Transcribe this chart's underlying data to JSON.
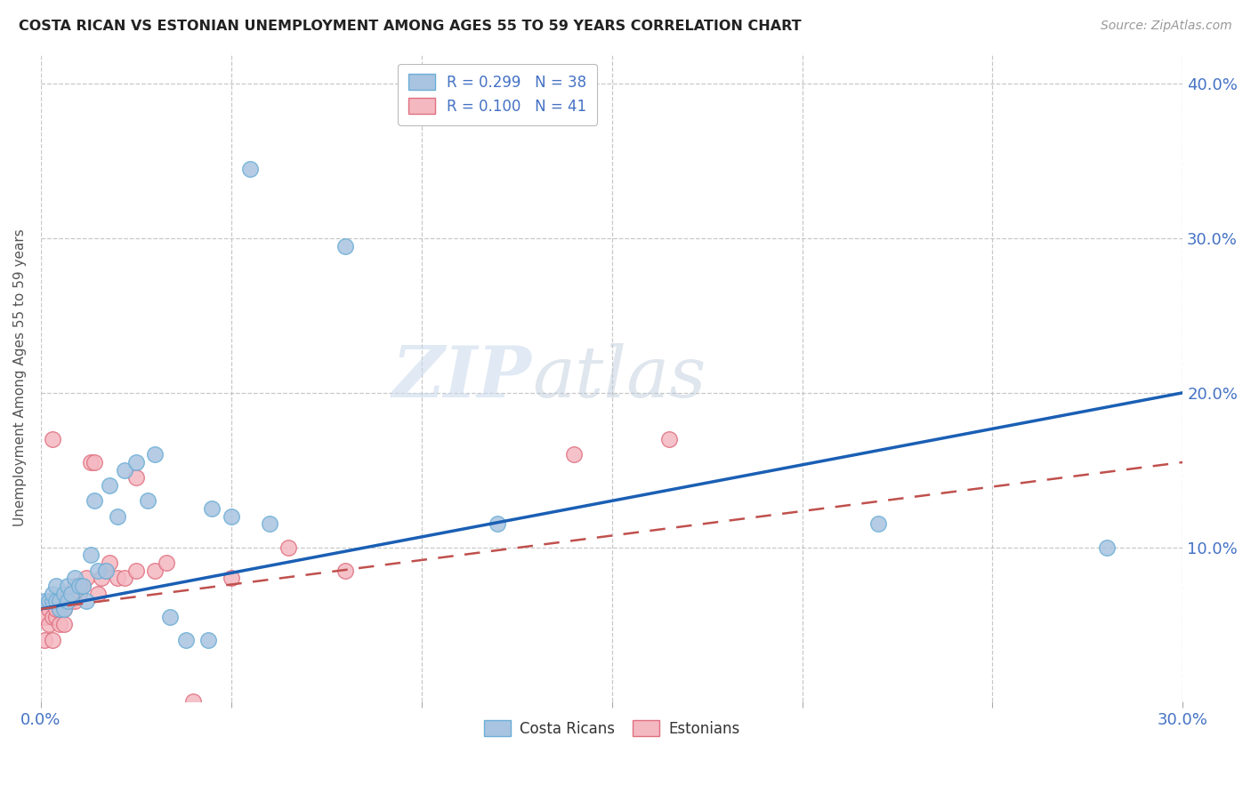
{
  "title": "COSTA RICAN VS ESTONIAN UNEMPLOYMENT AMONG AGES 55 TO 59 YEARS CORRELATION CHART",
  "source": "Source: ZipAtlas.com",
  "ylabel": "Unemployment Among Ages 55 to 59 years",
  "ylabel_right_ticks": [
    "40.0%",
    "30.0%",
    "20.0%",
    "10.0%"
  ],
  "ylabel_right_vals": [
    0.4,
    0.3,
    0.2,
    0.1
  ],
  "xlim": [
    0.0,
    0.3
  ],
  "ylim": [
    0.0,
    0.42
  ],
  "legend_r1_r": "0.299",
  "legend_r1_n": "38",
  "legend_r2_r": "0.100",
  "legend_r2_n": "41",
  "watermark_zip": "ZIP",
  "watermark_atlas": "atlas",
  "cr_color": "#a8c4e0",
  "cr_edge": "#6baed6",
  "est_color": "#f4b8c1",
  "est_edge": "#e07080",
  "cr_trend_color": "#1a5fb4",
  "est_trend_color": "#c0504d",
  "grid_color": "#bbbbbb",
  "background": "#ffffff",
  "cr_trend_start_y": 0.06,
  "cr_trend_end_y": 0.2,
  "est_trend_start_y": 0.06,
  "est_trend_end_y": 0.155,
  "costa_ricans_x": [
    0.001,
    0.002,
    0.003,
    0.003,
    0.004,
    0.004,
    0.005,
    0.005,
    0.006,
    0.006,
    0.007,
    0.007,
    0.008,
    0.009,
    0.01,
    0.011,
    0.012,
    0.013,
    0.014,
    0.015,
    0.017,
    0.018,
    0.02,
    0.022,
    0.025,
    0.028,
    0.03,
    0.034,
    0.038,
    0.044,
    0.05,
    0.055,
    0.08,
    0.12,
    0.22,
    0.28,
    0.045,
    0.06
  ],
  "costa_ricans_y": [
    0.065,
    0.065,
    0.065,
    0.07,
    0.065,
    0.075,
    0.06,
    0.065,
    0.06,
    0.07,
    0.065,
    0.075,
    0.07,
    0.08,
    0.075,
    0.075,
    0.065,
    0.095,
    0.13,
    0.085,
    0.085,
    0.14,
    0.12,
    0.15,
    0.155,
    0.13,
    0.16,
    0.055,
    0.04,
    0.04,
    0.12,
    0.345,
    0.295,
    0.115,
    0.115,
    0.1,
    0.125,
    0.115
  ],
  "estonians_x": [
    0.001,
    0.001,
    0.002,
    0.002,
    0.003,
    0.003,
    0.004,
    0.004,
    0.005,
    0.005,
    0.005,
    0.006,
    0.006,
    0.007,
    0.007,
    0.008,
    0.008,
    0.009,
    0.009,
    0.01,
    0.011,
    0.012,
    0.013,
    0.014,
    0.015,
    0.016,
    0.017,
    0.018,
    0.02,
    0.022,
    0.025,
    0.025,
    0.03,
    0.033,
    0.04,
    0.05,
    0.065,
    0.08,
    0.14,
    0.165,
    0.003
  ],
  "estonians_y": [
    0.04,
    0.055,
    0.05,
    0.06,
    0.04,
    0.055,
    0.055,
    0.06,
    0.05,
    0.06,
    0.065,
    0.05,
    0.06,
    0.065,
    0.07,
    0.065,
    0.07,
    0.065,
    0.075,
    0.07,
    0.075,
    0.08,
    0.155,
    0.155,
    0.07,
    0.08,
    0.085,
    0.09,
    0.08,
    0.08,
    0.085,
    0.145,
    0.085,
    0.09,
    0.0,
    0.08,
    0.1,
    0.085,
    0.16,
    0.17,
    0.17
  ]
}
